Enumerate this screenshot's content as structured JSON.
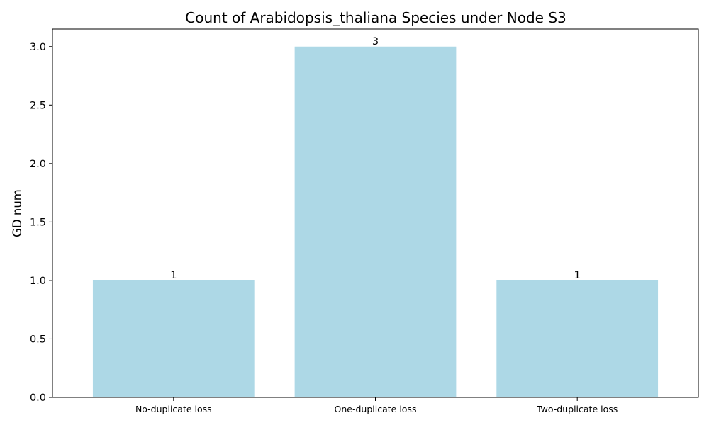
{
  "chart_data": {
    "type": "bar",
    "title": "Count of Arabidopsis_thaliana Species under Node S3",
    "xlabel": "",
    "ylabel": "GD num",
    "categories": [
      "No-duplicate loss",
      "One-duplicate loss",
      "Two-duplicate loss"
    ],
    "values": [
      1,
      3,
      1
    ],
    "data_labels": [
      "1",
      "3",
      "1"
    ],
    "ylim": [
      0,
      3.15
    ],
    "yticks": [
      0.0,
      0.5,
      1.0,
      1.5,
      2.0,
      2.5,
      3.0
    ],
    "ytick_labels": [
      "0.0",
      "0.5",
      "1.0",
      "1.5",
      "2.0",
      "2.5",
      "3.0"
    ],
    "bar_color": "#add8e6",
    "grid": false,
    "legend": "none"
  }
}
